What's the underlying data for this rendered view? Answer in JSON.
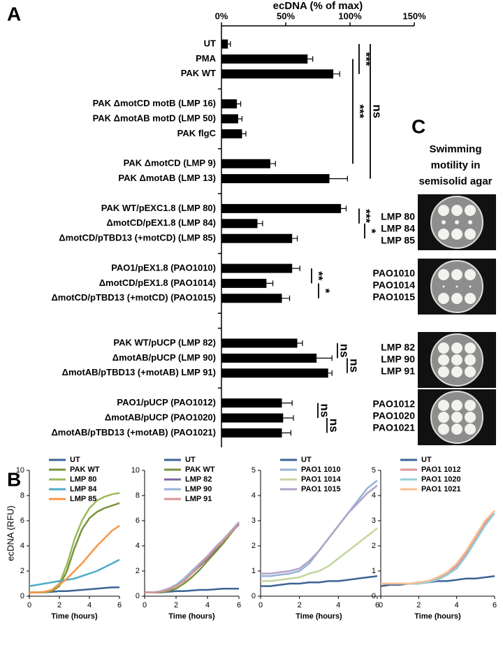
{
  "panel_labels": [
    "A",
    "B",
    "C"
  ],
  "chart_data": [
    {
      "type": "bar",
      "orientation": "horizontal",
      "xlabel": "ecDNA (% of max)",
      "color": "#000000",
      "xlim": [
        0,
        150
      ],
      "xticks": [
        {
          "value": 0,
          "label": "0%"
        },
        {
          "value": 50,
          "label": "50%"
        },
        {
          "value": 100,
          "label": "100%"
        },
        {
          "value": 150,
          "label": "150%"
        }
      ],
      "categories": [
        "UT",
        "PMA",
        "PAK WT",
        null,
        "PAK ΔmotCD motB (LMP 16)",
        "PAK ΔmotAB motD (LMP 50)",
        "PAK flgC",
        null,
        "PAK ΔmotCD (LMP 9)",
        "PAK ΔmotAB (LMP 13)",
        null,
        "PAK WT/pEXC1.8 (LMP 80)",
        "ΔmotCD/pEX1.8 (LMP 84)",
        "ΔmotCD/pTBD13 (+motCD) (LMP 85)",
        null,
        "PAO1/pEX1.8 (PAO1010)",
        "ΔmotCD/pEX1.8 (PAO1014)",
        "ΔmotCD/pTBD13 (+motCD) (PAO1015)",
        null,
        null,
        "PAK WT/pUCP (LMP 82)",
        "ΔmotAB/pUCP (LMP 90)",
        "ΔmotAB/pTBD13 (+motAB) LMP 91)",
        null,
        "PAO1/pUCP (PAO1012)",
        "ΔmotAB/pUCP (PAO1020)",
        "ΔmotAB/pTBD13 (+motAB) (PAO1021)"
      ],
      "values": [
        5,
        67,
        87,
        null,
        12,
        13,
        16,
        null,
        38,
        84,
        null,
        93,
        28,
        55,
        null,
        55,
        35,
        47,
        null,
        null,
        59,
        74,
        83,
        null,
        47,
        48,
        47
      ],
      "errors": [
        2,
        4,
        5,
        null,
        3,
        3,
        3,
        null,
        4,
        14,
        null,
        4,
        4,
        4,
        null,
        6,
        5,
        6,
        null,
        null,
        4,
        12,
        3,
        null,
        8,
        8,
        7
      ],
      "annotations": [
        "***",
        "***",
        "ns",
        "***",
        "*",
        "**",
        "*",
        "ns",
        "ns",
        "ns",
        "ns"
      ]
    },
    {
      "type": "line",
      "xlabel": "Time (hours)",
      "ylabel": "ecDNA (RFU)",
      "xlim": [
        0,
        6
      ],
      "xticks": [
        0,
        2,
        4,
        6
      ],
      "ylim": [
        0,
        10
      ],
      "yticks": [
        0,
        2,
        4,
        6,
        8,
        10
      ],
      "x": [
        0,
        0.5,
        1,
        1.5,
        2,
        2.5,
        3,
        3.5,
        4,
        4.5,
        5,
        5.5,
        6
      ],
      "series": [
        {
          "name": "UT",
          "color": "#3b6496",
          "values": [
            0.3,
            0.3,
            0.3,
            0.35,
            0.4,
            0.4,
            0.45,
            0.5,
            0.55,
            0.6,
            0.65,
            0.7,
            0.7
          ]
        },
        {
          "name": "PAK WT",
          "color": "#77933c",
          "values": [
            0.3,
            0.3,
            0.3,
            0.4,
            0.8,
            2.0,
            3.8,
            5.3,
            6.2,
            6.7,
            7.0,
            7.2,
            7.4
          ]
        },
        {
          "name": "LMP 80",
          "color": "#9bbb59",
          "values": [
            0.3,
            0.3,
            0.3,
            0.5,
            1.0,
            2.5,
            4.5,
            6.0,
            7.0,
            7.6,
            7.9,
            8.1,
            8.2
          ]
        },
        {
          "name": "LMP 84",
          "color": "#4bacc6",
          "values": [
            0.8,
            0.9,
            1.0,
            1.1,
            1.2,
            1.3,
            1.4,
            1.6,
            1.8,
            2.0,
            2.3,
            2.6,
            2.9
          ]
        },
        {
          "name": "LMP 85",
          "color": "#f79646",
          "values": [
            0.3,
            0.3,
            0.35,
            0.5,
            0.9,
            1.4,
            2.0,
            2.6,
            3.3,
            4.0,
            4.6,
            5.2,
            5.6
          ]
        }
      ]
    },
    {
      "type": "line",
      "xlabel": "Time (hours)",
      "xlim": [
        0,
        6
      ],
      "xticks": [
        0,
        2,
        4,
        6
      ],
      "ylim": [
        0,
        10
      ],
      "yticks": [
        0,
        2,
        4,
        6,
        8,
        10
      ],
      "x": [
        0,
        0.5,
        1,
        1.5,
        2,
        2.5,
        3,
        3.5,
        4,
        4.5,
        5,
        5.5,
        6
      ],
      "series": [
        {
          "name": "UT",
          "color": "#3b6496",
          "values": [
            0.3,
            0.3,
            0.3,
            0.35,
            0.4,
            0.4,
            0.45,
            0.5,
            0.5,
            0.55,
            0.6,
            0.6,
            0.6
          ]
        },
        {
          "name": "PAK WT",
          "color": "#77933c",
          "values": [
            0.3,
            0.3,
            0.3,
            0.4,
            0.6,
            1.0,
            1.5,
            2.1,
            2.8,
            3.5,
            4.2,
            5.0,
            5.8
          ]
        },
        {
          "name": "LMP 82",
          "color": "#8064a2",
          "values": [
            0.3,
            0.3,
            0.35,
            0.5,
            0.8,
            1.2,
            1.8,
            2.4,
            3.0,
            3.7,
            4.4,
            5.1,
            5.7
          ]
        },
        {
          "name": "LMP 90",
          "color": "#95b3d7",
          "values": [
            0.3,
            0.3,
            0.4,
            0.6,
            0.9,
            1.4,
            2.0,
            2.6,
            3.2,
            3.9,
            4.5,
            5.2,
            5.9
          ]
        },
        {
          "name": "LMP 91",
          "color": "#d99694",
          "values": [
            0.3,
            0.3,
            0.35,
            0.5,
            0.8,
            1.2,
            1.8,
            2.5,
            3.1,
            3.8,
            4.4,
            5.1,
            5.8
          ]
        }
      ]
    },
    {
      "type": "line",
      "xlabel": "Time (hours)",
      "xlim": [
        0,
        6
      ],
      "xticks": [
        0,
        2,
        4,
        6
      ],
      "ylim": [
        0,
        5
      ],
      "yticks": [
        0,
        1,
        2,
        3,
        4,
        5
      ],
      "x": [
        0,
        0.5,
        1,
        1.5,
        2,
        2.5,
        3,
        3.5,
        4,
        4.5,
        5,
        5.5,
        6
      ],
      "series": [
        {
          "name": "UT",
          "color": "#3b6496",
          "values": [
            0.4,
            0.4,
            0.45,
            0.5,
            0.5,
            0.55,
            0.55,
            0.6,
            0.6,
            0.65,
            0.7,
            0.75,
            0.8
          ]
        },
        {
          "name": "PAO1 1010",
          "color": "#95b3d7",
          "values": [
            0.8,
            0.8,
            0.85,
            0.9,
            1.0,
            1.3,
            1.8,
            2.3,
            2.8,
            3.3,
            3.8,
            4.3,
            4.6
          ]
        },
        {
          "name": "PAO1 1014",
          "color": "#c3d69b",
          "values": [
            0.6,
            0.6,
            0.65,
            0.7,
            0.75,
            0.9,
            1.0,
            1.2,
            1.5,
            1.8,
            2.1,
            2.4,
            2.7
          ]
        },
        {
          "name": "PAO1 1015",
          "color": "#b3a2c7",
          "values": [
            0.9,
            0.9,
            0.95,
            1.0,
            1.1,
            1.4,
            1.8,
            2.3,
            2.8,
            3.3,
            3.7,
            4.1,
            4.4
          ]
        }
      ]
    },
    {
      "type": "line",
      "xlabel": "Time (hours)",
      "xlim": [
        0,
        6
      ],
      "xticks": [
        0,
        2,
        4,
        6
      ],
      "ylim": [
        0,
        5
      ],
      "yticks": [
        0,
        1,
        2,
        3,
        4,
        5
      ],
      "x": [
        0,
        0.5,
        1,
        1.5,
        2,
        2.5,
        3,
        3.5,
        4,
        4.5,
        5,
        5.5,
        6
      ],
      "series": [
        {
          "name": "UT",
          "color": "#3b6496",
          "values": [
            0.4,
            0.45,
            0.45,
            0.5,
            0.5,
            0.55,
            0.6,
            0.6,
            0.65,
            0.7,
            0.7,
            0.75,
            0.8
          ]
        },
        {
          "name": "PAO1 1012",
          "color": "#da9694",
          "values": [
            0.5,
            0.5,
            0.5,
            0.5,
            0.55,
            0.6,
            0.7,
            0.9,
            1.2,
            1.7,
            2.3,
            2.9,
            3.4
          ]
        },
        {
          "name": "PAO1 1020",
          "color": "#93cddd",
          "values": [
            0.5,
            0.5,
            0.5,
            0.5,
            0.5,
            0.55,
            0.65,
            0.85,
            1.1,
            1.6,
            2.2,
            2.8,
            3.3
          ]
        },
        {
          "name": "PAO1 1021",
          "color": "#fabf8f",
          "values": [
            0.5,
            0.5,
            0.5,
            0.5,
            0.55,
            0.6,
            0.75,
            0.95,
            1.3,
            1.8,
            2.4,
            3.0,
            3.4
          ]
        }
      ]
    }
  ],
  "panel_c": {
    "title": [
      "Swimming",
      "motility in",
      "semisolid agar"
    ],
    "plates": [
      [
        "LMP 80",
        "LMP 84",
        "LMP 85"
      ],
      [
        "PAO1010",
        "PAO1014",
        "PAO1015"
      ],
      [
        "LMP 82",
        "LMP 90",
        "LMP 91"
      ],
      [
        "PAO1012",
        "PAO1020",
        "PAO1021"
      ]
    ]
  }
}
